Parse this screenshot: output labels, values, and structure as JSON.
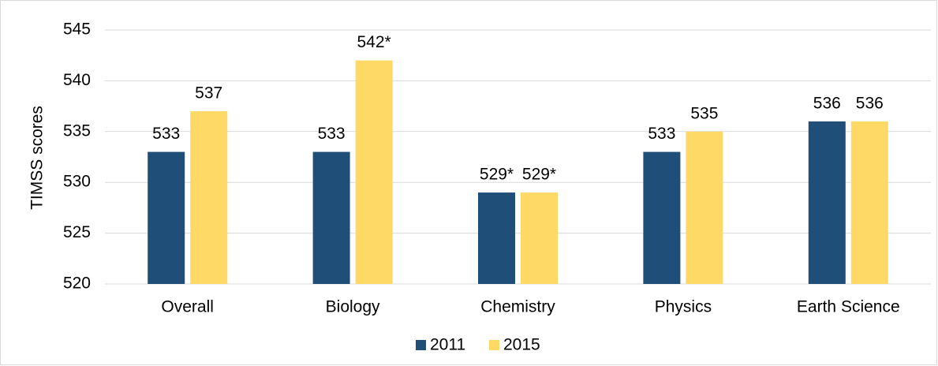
{
  "chart_data": {
    "type": "bar",
    "y_label": "TIMSS scores",
    "categories": [
      "Overall",
      "Biology",
      "Chemistry",
      "Physics",
      "Earth Science"
    ],
    "series": [
      {
        "name": "2011",
        "color": "#1f4e79",
        "values": [
          533,
          533,
          529,
          533,
          536
        ],
        "value_labels": [
          "533",
          "533",
          "529*",
          "533",
          "536"
        ]
      },
      {
        "name": "2015",
        "color": "#ffd966",
        "values": [
          537,
          542,
          529,
          535,
          536
        ],
        "value_labels": [
          "537",
          "542*",
          "529*",
          "535",
          "536"
        ]
      }
    ],
    "ylim": [
      520,
      545
    ],
    "yticks": [
      520,
      525,
      530,
      535,
      540,
      545
    ],
    "grid": true,
    "legend": "bottom"
  }
}
